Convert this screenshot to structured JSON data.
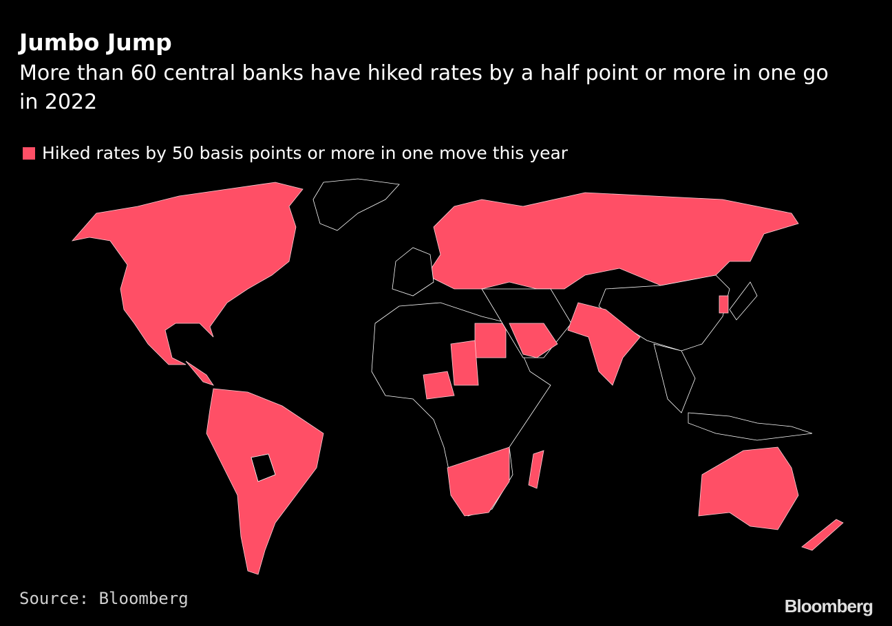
{
  "header": {
    "title": "Jumbo Jump",
    "subtitle": "More than 60 central banks have hiked rates by a half point or more in one go in 2022"
  },
  "legend": {
    "label": "Hiked rates by 50 basis points or more in one move this year"
  },
  "footer": {
    "source": "Source: Bloomberg",
    "logo": "Bloomberg"
  }
}
